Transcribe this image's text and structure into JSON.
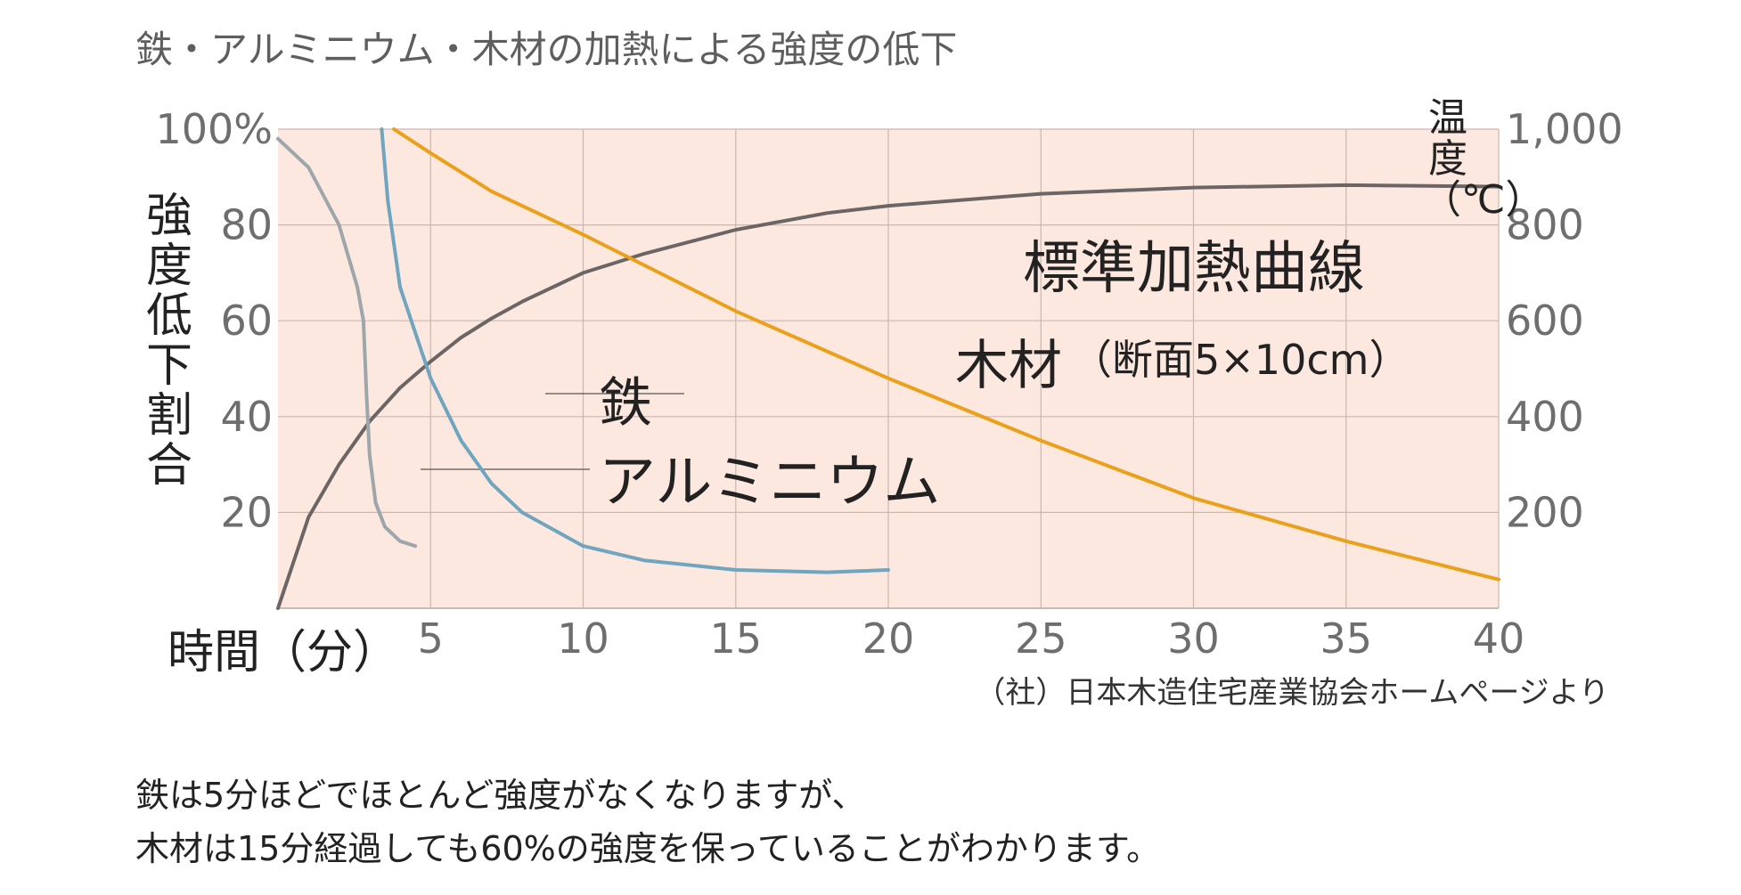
{
  "chart_title": "鉄・アルミニウム・木材の加熱による強度の低下",
  "source_note": "（社）日本木造住宅産業協会ホームページより",
  "caption": [
    "鉄は5分ほどでほとんど強度がなくなりますが、",
    "木材は15分経過しても60%の強度を保っていることがわかります。"
  ],
  "chart_data": {
    "type": "line",
    "xlabel": "時間（分）",
    "ylabel_left": "強度低下割合",
    "ylabel_right": "温度（℃）",
    "x_range": [
      0,
      40
    ],
    "x_ticks": [
      "5",
      "10",
      "15",
      "20",
      "25",
      "30",
      "35",
      "40"
    ],
    "y_left_range": [
      0,
      100
    ],
    "y_left_ticks": [
      "20",
      "40",
      "60",
      "80",
      "100%"
    ],
    "y_right_range": [
      0,
      1000
    ],
    "y_right_ticks": [
      "200",
      "400",
      "600",
      "800",
      "1,000"
    ],
    "grid": true,
    "series": [
      {
        "name": "標準加熱曲線",
        "axis": "right",
        "color": "#6b6565",
        "x": [
          0,
          1,
          2,
          3,
          4,
          5,
          6,
          7,
          8,
          10,
          12,
          15,
          18,
          20,
          25,
          30,
          35,
          40
        ],
        "y": [
          0,
          190,
          300,
          390,
          460,
          515,
          565,
          605,
          640,
          700,
          740,
          790,
          825,
          840,
          865,
          878,
          883,
          880
        ]
      },
      {
        "name": "木材",
        "note": "（断面5×10cm）",
        "axis": "left",
        "color": "#eba01a",
        "x": [
          3.8,
          5,
          7,
          10,
          15,
          20,
          25,
          30,
          35,
          40
        ],
        "y": [
          100,
          95,
          87,
          78,
          62,
          48,
          35,
          23,
          14,
          6
        ]
      },
      {
        "name": "鉄",
        "axis": "left",
        "color": "#6fa5bf",
        "x": [
          3.4,
          3.6,
          4,
          5,
          6,
          7,
          8,
          10,
          12,
          15,
          18,
          20
        ],
        "y": [
          100,
          85,
          67,
          48,
          35,
          26,
          20,
          13,
          10,
          8,
          7.5,
          8
        ]
      },
      {
        "name": "アルミニウム",
        "axis": "left",
        "color": "#9da7ab",
        "x": [
          0,
          1,
          2,
          2.6,
          2.8,
          2.9,
          3.0,
          3.2,
          3.5,
          4,
          4.5
        ],
        "y": [
          98,
          92,
          80,
          67,
          60,
          45,
          32,
          22,
          17,
          14,
          13
        ]
      }
    ]
  }
}
